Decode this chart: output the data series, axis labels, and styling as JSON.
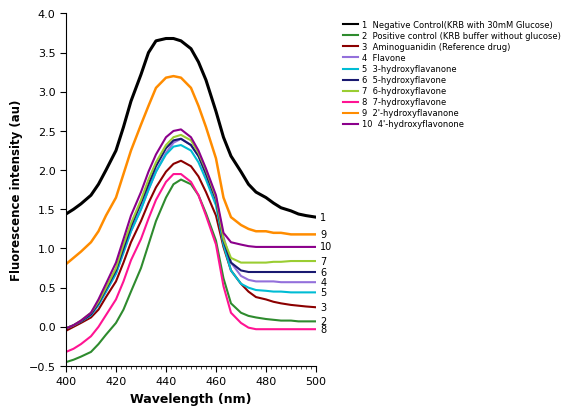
{
  "xlabel": "Wavelength (nm)",
  "ylabel": "Fluorescence intensity (au)",
  "xlim": [
    400,
    500
  ],
  "ylim": [
    -0.5,
    4.0
  ],
  "yticks": [
    -0.5,
    0.0,
    0.5,
    1.0,
    1.5,
    2.0,
    2.5,
    3.0,
    3.5,
    4.0
  ],
  "xticks": [
    400,
    420,
    440,
    460,
    480,
    500
  ],
  "legend": [
    {
      "num": "1",
      "label": "Negative Control(KRB with 30mM Glucose)",
      "color": "#000000"
    },
    {
      "num": "2",
      "label": "Positive control (KRB buffer without glucose)",
      "color": "#2e8b2e"
    },
    {
      "num": "3",
      "label": "Aminoguanidin (Reference drug)",
      "color": "#8b0000"
    },
    {
      "num": "4",
      "label": "Flavone",
      "color": "#9370db"
    },
    {
      "num": "5",
      "label": "3-hydroxyflavanone",
      "color": "#00bcd4"
    },
    {
      "num": "6",
      "label": "5-hydroxyflavone",
      "color": "#191970"
    },
    {
      "num": "7",
      "label": "6-hydroxyflavone",
      "color": "#9acd32"
    },
    {
      "num": "8",
      "label": "7-hydroxyflavone",
      "color": "#ff1493"
    },
    {
      "num": "9",
      "label": "2'-hydroxyflavanone",
      "color": "#ff8c00"
    },
    {
      "num": "10",
      "label": "4'-hydroxyflavonone",
      "color": "#8b008b"
    }
  ],
  "curves": {
    "1": {
      "color": "#000000",
      "lw": 2.2,
      "x": [
        400,
        403,
        406,
        410,
        413,
        416,
        420,
        423,
        426,
        430,
        433,
        436,
        440,
        443,
        446,
        450,
        453,
        456,
        460,
        463,
        466,
        470,
        473,
        476,
        480,
        483,
        486,
        490,
        493,
        496,
        500
      ],
      "y": [
        1.44,
        1.5,
        1.57,
        1.68,
        1.82,
        2.0,
        2.25,
        2.55,
        2.88,
        3.22,
        3.5,
        3.65,
        3.68,
        3.68,
        3.65,
        3.55,
        3.38,
        3.15,
        2.75,
        2.42,
        2.18,
        1.98,
        1.82,
        1.72,
        1.65,
        1.58,
        1.52,
        1.48,
        1.44,
        1.42,
        1.4
      ]
    },
    "2": {
      "color": "#2e8b2e",
      "lw": 1.5,
      "x": [
        400,
        403,
        406,
        410,
        413,
        416,
        420,
        423,
        426,
        430,
        433,
        436,
        440,
        443,
        446,
        450,
        453,
        456,
        460,
        463,
        466,
        470,
        473,
        476,
        480,
        483,
        486,
        490,
        493,
        496,
        500
      ],
      "y": [
        -0.45,
        -0.42,
        -0.38,
        -0.32,
        -0.22,
        -0.1,
        0.05,
        0.22,
        0.45,
        0.75,
        1.05,
        1.35,
        1.65,
        1.82,
        1.88,
        1.82,
        1.68,
        1.45,
        1.1,
        0.62,
        0.3,
        0.18,
        0.14,
        0.12,
        0.1,
        0.09,
        0.08,
        0.08,
        0.07,
        0.07,
        0.07
      ]
    },
    "3": {
      "color": "#8b0000",
      "lw": 1.5,
      "x": [
        400,
        403,
        406,
        410,
        413,
        416,
        420,
        423,
        426,
        430,
        433,
        436,
        440,
        443,
        446,
        450,
        453,
        456,
        460,
        463,
        466,
        470,
        473,
        476,
        480,
        483,
        486,
        490,
        493,
        496,
        500
      ],
      "y": [
        -0.05,
        0.0,
        0.05,
        0.12,
        0.22,
        0.38,
        0.58,
        0.82,
        1.08,
        1.35,
        1.58,
        1.78,
        1.98,
        2.08,
        2.12,
        2.05,
        1.92,
        1.72,
        1.42,
        1.02,
        0.72,
        0.55,
        0.45,
        0.38,
        0.35,
        0.32,
        0.3,
        0.28,
        0.27,
        0.26,
        0.25
      ]
    },
    "4": {
      "color": "#9370db",
      "lw": 1.5,
      "x": [
        400,
        403,
        406,
        410,
        413,
        416,
        420,
        423,
        426,
        430,
        433,
        436,
        440,
        443,
        446,
        450,
        453,
        456,
        460,
        463,
        466,
        470,
        473,
        476,
        480,
        483,
        486,
        490,
        493,
        496,
        500
      ],
      "y": [
        -0.02,
        0.02,
        0.07,
        0.15,
        0.28,
        0.45,
        0.68,
        0.95,
        1.22,
        1.5,
        1.75,
        1.98,
        2.22,
        2.35,
        2.4,
        2.32,
        2.18,
        1.98,
        1.65,
        1.15,
        0.82,
        0.65,
        0.6,
        0.58,
        0.58,
        0.58,
        0.57,
        0.57,
        0.57,
        0.57,
        0.57
      ]
    },
    "5": {
      "color": "#00bcd4",
      "lw": 1.5,
      "x": [
        400,
        403,
        406,
        410,
        413,
        416,
        420,
        423,
        426,
        430,
        433,
        436,
        440,
        443,
        446,
        450,
        453,
        456,
        460,
        463,
        466,
        470,
        473,
        476,
        480,
        483,
        486,
        490,
        493,
        496,
        500
      ],
      "y": [
        -0.02,
        0.02,
        0.07,
        0.15,
        0.28,
        0.45,
        0.68,
        0.95,
        1.22,
        1.5,
        1.75,
        1.98,
        2.2,
        2.3,
        2.32,
        2.25,
        2.1,
        1.88,
        1.55,
        1.05,
        0.72,
        0.55,
        0.5,
        0.47,
        0.46,
        0.45,
        0.45,
        0.44,
        0.44,
        0.44,
        0.44
      ]
    },
    "6": {
      "color": "#191970",
      "lw": 1.5,
      "x": [
        400,
        403,
        406,
        410,
        413,
        416,
        420,
        423,
        426,
        430,
        433,
        436,
        440,
        443,
        446,
        450,
        453,
        456,
        460,
        463,
        466,
        470,
        473,
        476,
        480,
        483,
        486,
        490,
        493,
        496,
        500
      ],
      "y": [
        -0.02,
        0.02,
        0.07,
        0.16,
        0.3,
        0.48,
        0.72,
        1.0,
        1.28,
        1.58,
        1.82,
        2.05,
        2.28,
        2.38,
        2.4,
        2.32,
        2.18,
        1.95,
        1.62,
        1.1,
        0.82,
        0.72,
        0.7,
        0.7,
        0.7,
        0.7,
        0.7,
        0.7,
        0.7,
        0.7,
        0.7
      ]
    },
    "7": {
      "color": "#9acd32",
      "lw": 1.5,
      "x": [
        400,
        403,
        406,
        410,
        413,
        416,
        420,
        423,
        426,
        430,
        433,
        436,
        440,
        443,
        446,
        450,
        453,
        456,
        460,
        463,
        466,
        470,
        473,
        476,
        480,
        483,
        486,
        490,
        493,
        496,
        500
      ],
      "y": [
        -0.02,
        0.02,
        0.08,
        0.18,
        0.32,
        0.5,
        0.75,
        1.05,
        1.32,
        1.62,
        1.88,
        2.1,
        2.32,
        2.42,
        2.45,
        2.38,
        2.22,
        2.0,
        1.65,
        1.12,
        0.88,
        0.82,
        0.82,
        0.82,
        0.82,
        0.83,
        0.83,
        0.84,
        0.84,
        0.84,
        0.84
      ]
    },
    "8": {
      "color": "#ff1493",
      "lw": 1.5,
      "x": [
        400,
        403,
        406,
        410,
        413,
        416,
        420,
        423,
        426,
        430,
        433,
        436,
        440,
        443,
        446,
        450,
        453,
        456,
        460,
        463,
        466,
        470,
        473,
        476,
        480,
        483,
        486,
        490,
        493,
        496,
        500
      ],
      "y": [
        -0.32,
        -0.28,
        -0.22,
        -0.12,
        0.0,
        0.15,
        0.35,
        0.58,
        0.85,
        1.12,
        1.38,
        1.62,
        1.85,
        1.95,
        1.95,
        1.85,
        1.68,
        1.42,
        1.05,
        0.52,
        0.18,
        0.05,
        -0.01,
        -0.03,
        -0.03,
        -0.03,
        -0.03,
        -0.03,
        -0.03,
        -0.03,
        -0.03
      ]
    },
    "9": {
      "color": "#ff8c00",
      "lw": 1.8,
      "x": [
        400,
        403,
        406,
        410,
        413,
        416,
        420,
        423,
        426,
        430,
        433,
        436,
        440,
        443,
        446,
        450,
        453,
        456,
        460,
        463,
        466,
        470,
        473,
        476,
        480,
        483,
        486,
        490,
        493,
        496,
        500
      ],
      "y": [
        0.8,
        0.88,
        0.96,
        1.08,
        1.22,
        1.42,
        1.65,
        1.95,
        2.25,
        2.58,
        2.82,
        3.05,
        3.18,
        3.2,
        3.18,
        3.05,
        2.82,
        2.55,
        2.15,
        1.65,
        1.4,
        1.3,
        1.25,
        1.22,
        1.22,
        1.2,
        1.2,
        1.18,
        1.18,
        1.18,
        1.18
      ]
    },
    "10": {
      "color": "#8b008b",
      "lw": 1.5,
      "x": [
        400,
        403,
        406,
        410,
        413,
        416,
        420,
        423,
        426,
        430,
        433,
        436,
        440,
        443,
        446,
        450,
        453,
        456,
        460,
        463,
        466,
        470,
        473,
        476,
        480,
        483,
        486,
        490,
        493,
        496,
        500
      ],
      "y": [
        -0.02,
        0.02,
        0.08,
        0.18,
        0.35,
        0.55,
        0.82,
        1.12,
        1.42,
        1.72,
        1.98,
        2.2,
        2.42,
        2.5,
        2.52,
        2.42,
        2.25,
        2.02,
        1.68,
        1.2,
        1.08,
        1.05,
        1.03,
        1.02,
        1.02,
        1.02,
        1.02,
        1.02,
        1.02,
        1.02,
        1.02
      ]
    }
  },
  "end_labels": {
    "1": 1.4,
    "9": 1.18,
    "10": 1.02,
    "7": 0.84,
    "6": 0.7,
    "4": 0.57,
    "5": 0.44,
    "3": 0.25,
    "2": 0.07,
    "8": -0.03
  }
}
